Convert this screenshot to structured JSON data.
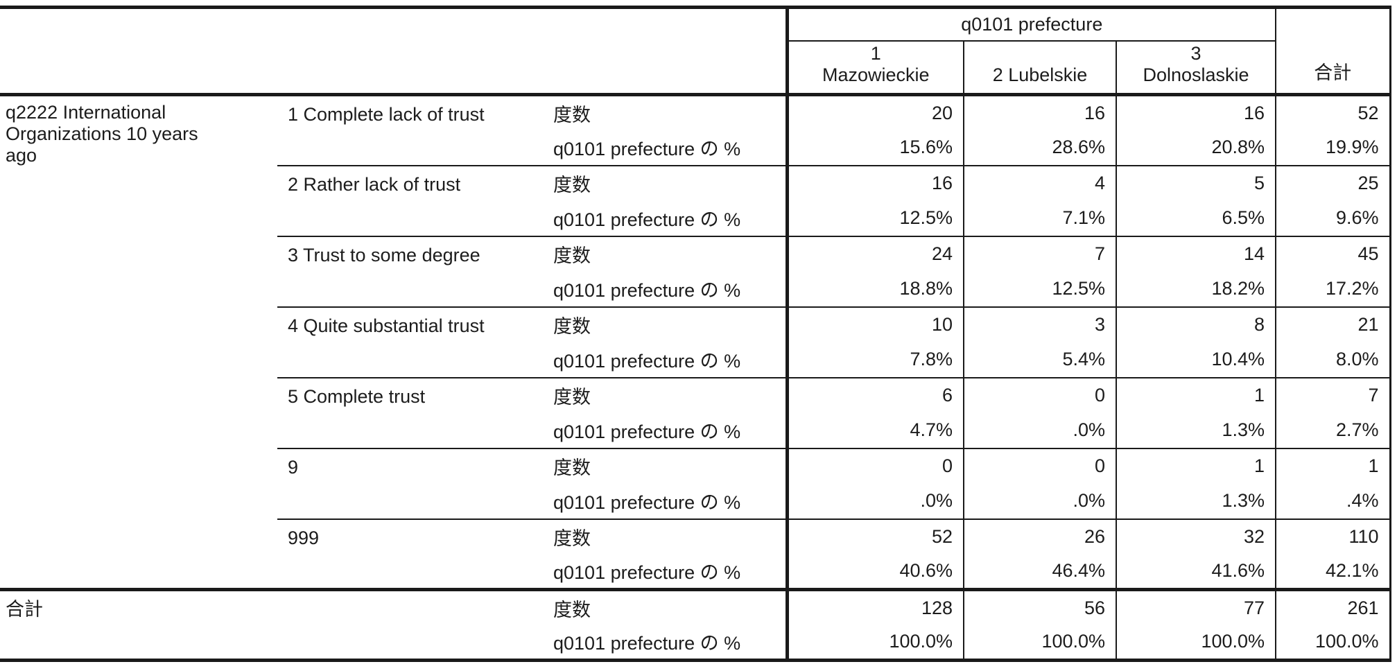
{
  "table": {
    "stub_title": "q2222 International\nOrganizations 10 years\nago",
    "col_group_title": "q0101 prefecture",
    "columns": [
      "1\nMazowieckie",
      "2 Lubelskie",
      "3\nDolnoslaskie"
    ],
    "total_column_label": "合計",
    "measure_labels": {
      "count": "度数",
      "percent": "q0101 prefecture の %"
    },
    "categories": [
      {
        "label": "1 Complete lack of trust",
        "counts": [
          "20",
          "16",
          "16",
          "52"
        ],
        "percents": [
          "15.6%",
          "28.6%",
          "20.8%",
          "19.9%"
        ]
      },
      {
        "label": "2 Rather lack of trust",
        "counts": [
          "16",
          "4",
          "5",
          "25"
        ],
        "percents": [
          "12.5%",
          "7.1%",
          "6.5%",
          "9.6%"
        ]
      },
      {
        "label": "3 Trust to some degree",
        "counts": [
          "24",
          "7",
          "14",
          "45"
        ],
        "percents": [
          "18.8%",
          "12.5%",
          "18.2%",
          "17.2%"
        ]
      },
      {
        "label": "4 Quite substantial trust",
        "counts": [
          "10",
          "3",
          "8",
          "21"
        ],
        "percents": [
          "7.8%",
          "5.4%",
          "10.4%",
          "8.0%"
        ]
      },
      {
        "label": "5 Complete trust",
        "counts": [
          "6",
          "0",
          "1",
          "7"
        ],
        "percents": [
          "4.7%",
          ".0%",
          "1.3%",
          "2.7%"
        ]
      },
      {
        "label": "9",
        "counts": [
          "0",
          "0",
          "1",
          "1"
        ],
        "percents": [
          ".0%",
          ".0%",
          "1.3%",
          ".4%"
        ]
      },
      {
        "label": "999",
        "counts": [
          "52",
          "26",
          "32",
          "110"
        ],
        "percents": [
          "40.6%",
          "46.4%",
          "41.6%",
          "42.1%"
        ]
      }
    ],
    "total_row": {
      "label": "合計",
      "counts": [
        "128",
        "56",
        "77",
        "261"
      ],
      "percents": [
        "100.0%",
        "100.0%",
        "100.0%",
        "100.0%"
      ]
    },
    "colors": {
      "line": "#1a1a1a",
      "text": "#1c1c1c",
      "background": "#ffffff"
    }
  }
}
